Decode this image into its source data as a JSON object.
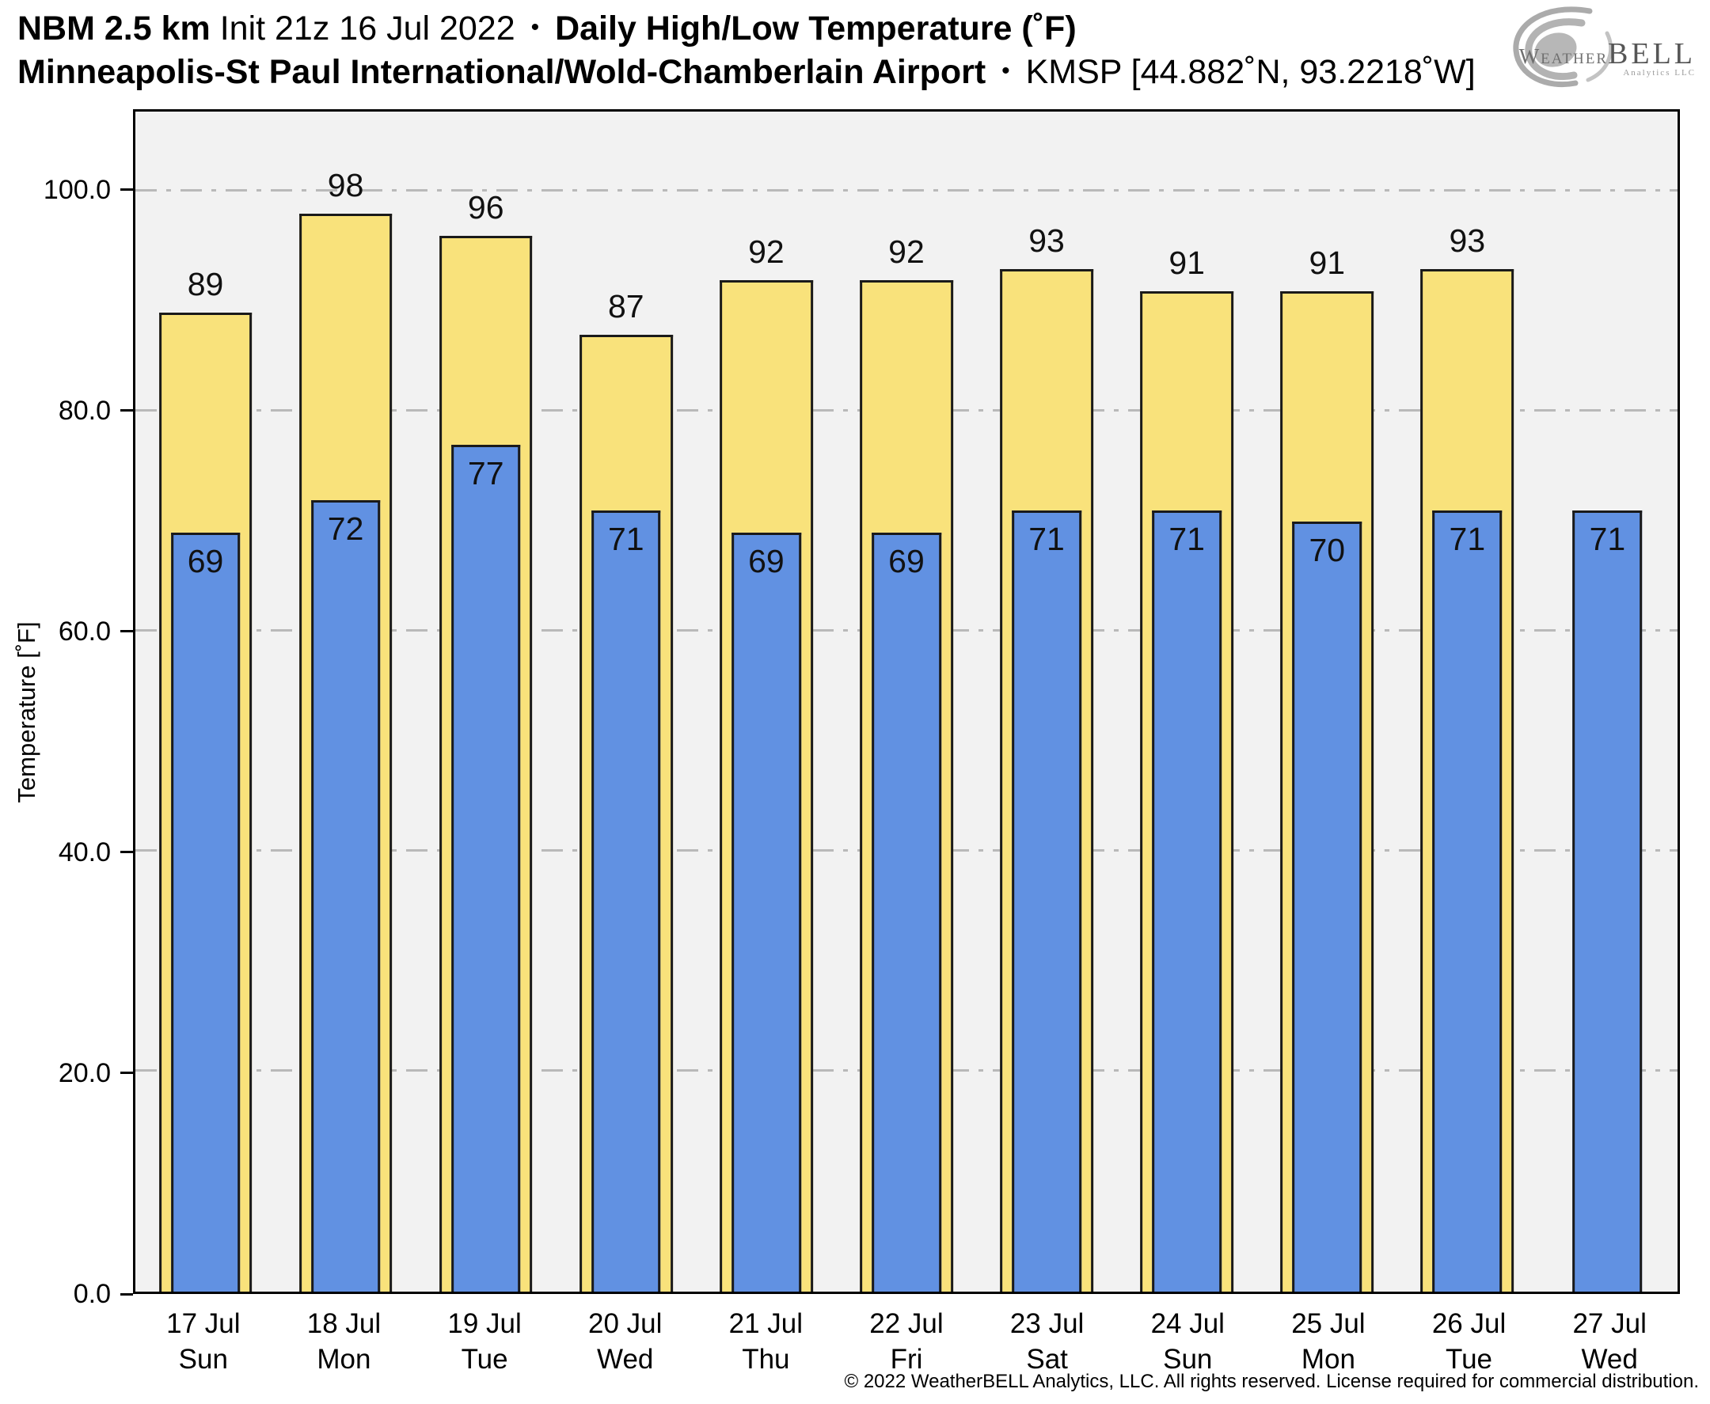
{
  "header": {
    "line1_model": "NBM 2.5 km",
    "line1_init": "Init 21z 16 Jul 2022",
    "bullet": "•",
    "line1_product": "Daily High/Low Temperature (˚F)",
    "line2_station": "Minneapolis-St Paul International/Wold-Chamberlain Airport",
    "line2_id": "KMSP [44.882˚N, 93.2218˚W]"
  },
  "logo": {
    "weather": "Weather",
    "bell": "BELL",
    "sub": "Analytics LLC"
  },
  "chart_data": {
    "type": "bar",
    "title": "Daily High/Low Temperature (˚F)",
    "station": "KMSP Minneapolis-St Paul International/Wold-Chamberlain Airport",
    "ylabel": "Temperature [˚F]",
    "ylim": [
      0,
      107.3
    ],
    "yticks": [
      0,
      20,
      40,
      60,
      80,
      100
    ],
    "ytick_labels": [
      "0.0",
      "20.0",
      "40.0",
      "60.0",
      "80.0",
      "100.0"
    ],
    "grid": "horizontal dash-dot gridlines at yticks, light gray, plot background #f2f2f2",
    "legend": "none (series identified by title: High = yellow outer bars, Low = blue inner bars)",
    "categories": [
      {
        "date": "17 Jul",
        "day": "Sun"
      },
      {
        "date": "18 Jul",
        "day": "Mon"
      },
      {
        "date": "19 Jul",
        "day": "Tue"
      },
      {
        "date": "20 Jul",
        "day": "Wed"
      },
      {
        "date": "21 Jul",
        "day": "Thu"
      },
      {
        "date": "22 Jul",
        "day": "Fri"
      },
      {
        "date": "23 Jul",
        "day": "Sat"
      },
      {
        "date": "24 Jul",
        "day": "Sun"
      },
      {
        "date": "25 Jul",
        "day": "Mon"
      },
      {
        "date": "26 Jul",
        "day": "Tue"
      },
      {
        "date": "27 Jul",
        "day": "Wed"
      }
    ],
    "series": [
      {
        "name": "High",
        "color": "#f9e27b",
        "values": [
          89,
          98,
          96,
          87,
          92,
          92,
          93,
          91,
          91,
          93,
          null
        ]
      },
      {
        "name": "Low",
        "color": "#6191e2",
        "values": [
          69,
          72,
          77,
          71,
          69,
          69,
          71,
          71,
          70,
          71,
          71
        ]
      }
    ]
  },
  "footer": {
    "copyright": "© 2022 WeatherBELL Analytics, LLC. All rights reserved. License required for commercial distribution."
  }
}
